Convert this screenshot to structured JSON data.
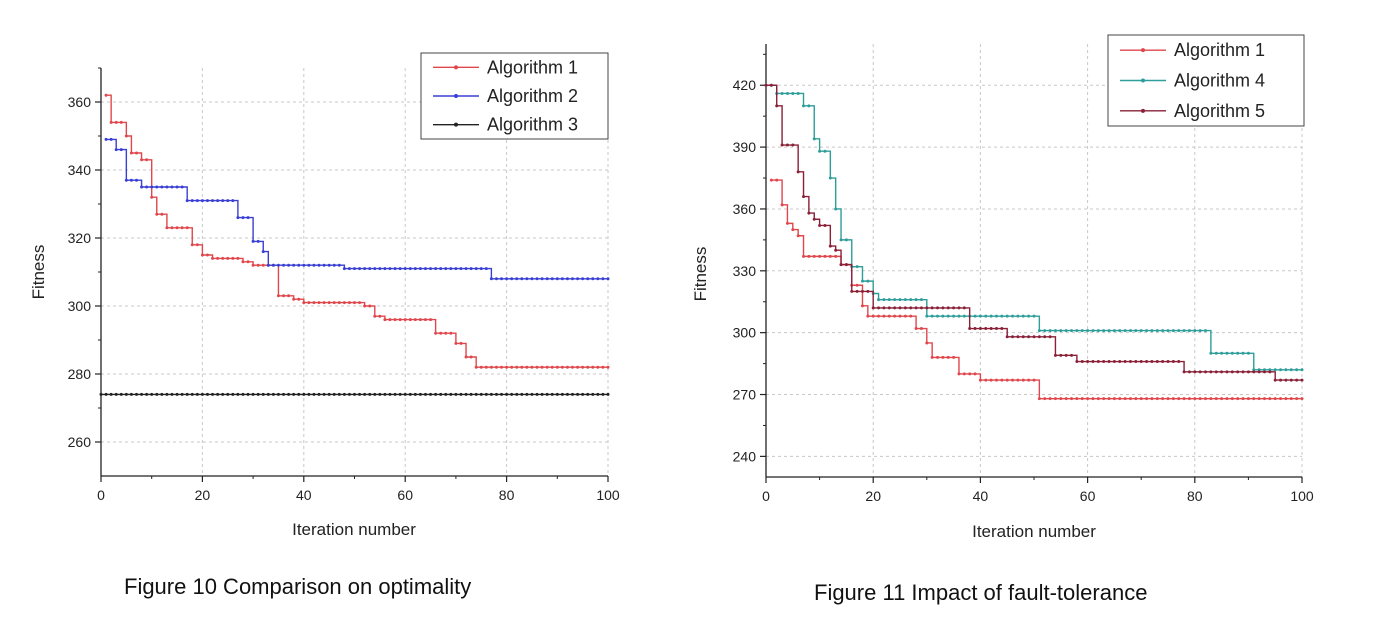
{
  "chart_data": [
    {
      "type": "line",
      "caption": "Figure 10 Comparison on optimality",
      "xlabel": "Iteration number",
      "ylabel": "Fitness",
      "xlim": [
        0,
        100
      ],
      "ylim": [
        250,
        370
      ],
      "xticks": [
        0,
        20,
        40,
        60,
        80,
        100
      ],
      "yticks": [
        260,
        280,
        300,
        320,
        340,
        360
      ],
      "grid": true,
      "legend_position": "top-right",
      "series": [
        {
          "name": "Algorithm 1",
          "color": "#e0474c",
          "points": [
            [
              1,
              362
            ],
            [
              2,
              354
            ],
            [
              5,
              350
            ],
            [
              6,
              345
            ],
            [
              8,
              343
            ],
            [
              10,
              332
            ],
            [
              11,
              327
            ],
            [
              13,
              323
            ],
            [
              18,
              318
            ],
            [
              20,
              315
            ],
            [
              22,
              314
            ],
            [
              28,
              313
            ],
            [
              30,
              312
            ],
            [
              34,
              312
            ],
            [
              35,
              303
            ],
            [
              38,
              302
            ],
            [
              40,
              301
            ],
            [
              52,
              300
            ],
            [
              54,
              297
            ],
            [
              56,
              296
            ],
            [
              66,
              292
            ],
            [
              70,
              289
            ],
            [
              72,
              285
            ],
            [
              74,
              282
            ],
            [
              100,
              282
            ]
          ]
        },
        {
          "name": "Algorithm 2",
          "color": "#3a3fd4",
          "points": [
            [
              1,
              349
            ],
            [
              3,
              346
            ],
            [
              5,
              337
            ],
            [
              8,
              335
            ],
            [
              16,
              335
            ],
            [
              17,
              331
            ],
            [
              26,
              331
            ],
            [
              27,
              326
            ],
            [
              30,
              319
            ],
            [
              32,
              316
            ],
            [
              33,
              312
            ],
            [
              47,
              312
            ],
            [
              48,
              311
            ],
            [
              76,
              311
            ],
            [
              77,
              308
            ],
            [
              100,
              308
            ]
          ]
        },
        {
          "name": "Algorithm 3",
          "color": "#222222",
          "points": [
            [
              0,
              274
            ],
            [
              100,
              274
            ]
          ]
        }
      ]
    },
    {
      "type": "line",
      "caption": "Figure 11 Impact of fault-tolerance",
      "xlabel": "Iteration number",
      "ylabel": "Fitness",
      "xlim": [
        0,
        100
      ],
      "ylim": [
        230,
        440
      ],
      "xticks": [
        0,
        20,
        40,
        60,
        80,
        100
      ],
      "yticks": [
        240,
        270,
        300,
        330,
        360,
        390,
        420
      ],
      "grid": true,
      "legend_position": "top-right",
      "series": [
        {
          "name": "Algorithm 1",
          "color": "#e0474c",
          "points": [
            [
              1,
              374
            ],
            [
              3,
              362
            ],
            [
              4,
              353
            ],
            [
              5,
              350
            ],
            [
              6,
              347
            ],
            [
              7,
              337
            ],
            [
              12,
              337
            ],
            [
              14,
              333
            ],
            [
              16,
              323
            ],
            [
              18,
              313
            ],
            [
              19,
              308
            ],
            [
              27,
              308
            ],
            [
              28,
              302
            ],
            [
              30,
              295
            ],
            [
              31,
              288
            ],
            [
              34,
              288
            ],
            [
              36,
              280
            ],
            [
              39,
              280
            ],
            [
              40,
              277
            ],
            [
              50,
              277
            ],
            [
              51,
              268
            ],
            [
              100,
              268
            ]
          ]
        },
        {
          "name": "Algorithm 4",
          "color": "#2e9e9a",
          "points": [
            [
              0,
              420
            ],
            [
              2,
              416
            ],
            [
              6,
              416
            ],
            [
              7,
              410
            ],
            [
              9,
              394
            ],
            [
              10,
              388
            ],
            [
              12,
              375
            ],
            [
              13,
              360
            ],
            [
              14,
              345
            ],
            [
              16,
              332
            ],
            [
              18,
              325
            ],
            [
              20,
              319
            ],
            [
              21,
              316
            ],
            [
              29,
              316
            ],
            [
              30,
              308
            ],
            [
              50,
              308
            ],
            [
              51,
              301
            ],
            [
              82,
              301
            ],
            [
              83,
              290
            ],
            [
              90,
              290
            ],
            [
              91,
              282
            ],
            [
              100,
              282
            ]
          ]
        },
        {
          "name": "Algorithm 5",
          "color": "#8a2038",
          "points": [
            [
              0,
              420
            ],
            [
              2,
              410
            ],
            [
              3,
              391
            ],
            [
              5,
              391
            ],
            [
              6,
              378
            ],
            [
              7,
              366
            ],
            [
              8,
              358
            ],
            [
              9,
              355
            ],
            [
              10,
              352
            ],
            [
              12,
              342
            ],
            [
              13,
              340
            ],
            [
              14,
              333
            ],
            [
              16,
              320
            ],
            [
              19,
              320
            ],
            [
              20,
              312
            ],
            [
              37,
              312
            ],
            [
              38,
              302
            ],
            [
              44,
              302
            ],
            [
              45,
              298
            ],
            [
              53,
              298
            ],
            [
              54,
              289
            ],
            [
              57,
              289
            ],
            [
              58,
              286
            ],
            [
              77,
              286
            ],
            [
              78,
              281
            ],
            [
              94,
              281
            ],
            [
              95,
              277
            ],
            [
              100,
              277
            ]
          ]
        }
      ]
    }
  ]
}
